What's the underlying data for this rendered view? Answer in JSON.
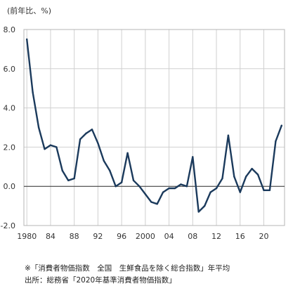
{
  "chart_data": {
    "type": "line",
    "unit_label": "(前年比、%)",
    "ylim": [
      -2.0,
      8.0
    ],
    "y_ticks": [
      "8.0",
      "6.0",
      "4.0",
      "2.0",
      "0.0",
      "-2.0"
    ],
    "y_tick_values": [
      8,
      6,
      4,
      2,
      0,
      -2
    ],
    "x_ticks": [
      "1980",
      "84",
      "88",
      "92",
      "96",
      "2000",
      "04",
      "08",
      "12",
      "16",
      "20"
    ],
    "x_tick_years": [
      1980,
      1984,
      1988,
      1992,
      1996,
      2000,
      2004,
      2008,
      2012,
      2016,
      2020
    ],
    "xlim": [
      1979.5,
      2023.5
    ],
    "grid": true,
    "series": [
      {
        "x": [
          1980,
          1981,
          1982,
          1983,
          1984,
          1985,
          1986,
          1987,
          1988,
          1989,
          1990,
          1991,
          1992,
          1993,
          1994,
          1995,
          1996,
          1997,
          1998,
          1999,
          2000,
          2001,
          2002,
          2003,
          2004,
          2005,
          2006,
          2007,
          2008,
          2009,
          2010,
          2011,
          2012,
          2013,
          2014,
          2015,
          2016,
          2017,
          2018,
          2019,
          2020,
          2021,
          2022,
          2023
        ],
        "values": [
          7.5,
          4.8,
          3.0,
          1.9,
          2.1,
          2.0,
          0.8,
          0.3,
          0.4,
          2.4,
          2.7,
          2.9,
          2.2,
          1.3,
          0.8,
          0.0,
          0.2,
          1.7,
          0.3,
          0.0,
          -0.4,
          -0.8,
          -0.9,
          -0.3,
          -0.1,
          -0.1,
          0.1,
          0.0,
          1.5,
          -1.3,
          -1.0,
          -0.3,
          -0.1,
          0.4,
          2.6,
          0.5,
          -0.3,
          0.5,
          0.9,
          0.6,
          -0.2,
          -0.2,
          2.3,
          3.1
        ]
      }
    ],
    "colors": {
      "line": "#1b3a5c",
      "grid": "#d0d0d0",
      "zero_line": "#333333"
    }
  },
  "notes": {
    "line1": "※「消費者物価指数　全国　生鮮食品を除く総合指数」年平均",
    "line2": "出所：総務省「2020年基準消費者物価指数」"
  }
}
